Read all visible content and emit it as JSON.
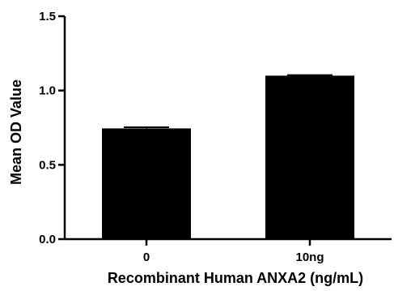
{
  "chart_data": {
    "type": "bar",
    "title": "",
    "xlabel": "Recombinant Human ANXA2 (ng/mL)",
    "ylabel": "Mean OD Value",
    "categories": [
      "0",
      "10ng"
    ],
    "values": [
      0.745,
      1.1
    ],
    "error": [
      0.008,
      0.004
    ],
    "ylim": [
      0,
      1.5
    ],
    "yticks": [
      0,
      0.5,
      1,
      1.5
    ],
    "ytick_labels": [
      "0.0",
      "0.5",
      "1.0",
      "1.5"
    ],
    "bar_color": "#000000",
    "grid": false,
    "legend": "none"
  }
}
